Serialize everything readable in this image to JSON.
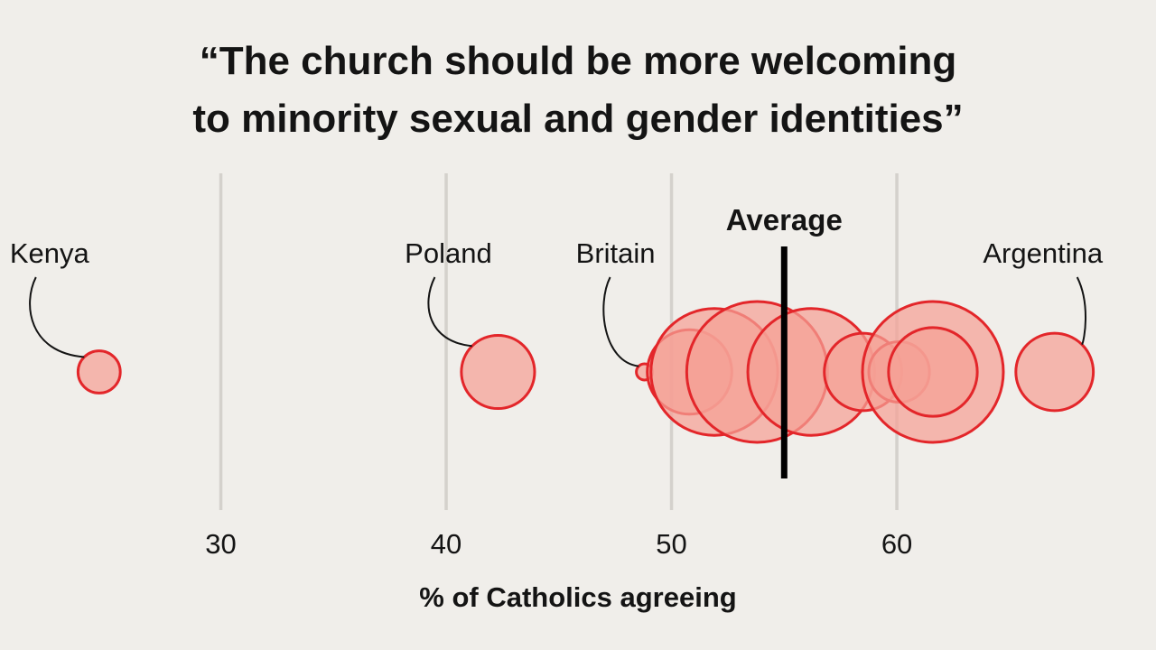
{
  "chart_data": {
    "type": "scatter",
    "title": "“The church should be more welcoming to minority sexual and gender identities”",
    "title_lines": [
      "“The church should be more welcoming",
      "to minority sexual and gender identities”"
    ],
    "xlabel": "% of Catholics agreeing",
    "ylabel": "",
    "xlim": [
      20.2,
      71.5
    ],
    "x_ticks": [
      30,
      40,
      50,
      60
    ],
    "grid": true,
    "average": {
      "label": "Average",
      "value": 55
    },
    "colors": {
      "fill": "#f5a196",
      "stroke": "#e3262a",
      "grid": "#d4d1cc",
      "average": "#000000"
    },
    "points": [
      {
        "label": "Kenya",
        "value": 24.6,
        "size": 0.3
      },
      {
        "label": "Poland",
        "value": 42.3,
        "size": 0.52
      },
      {
        "label": "Britain",
        "value": 48.8,
        "size": 0.115
      },
      {
        "label": "",
        "value": 50.8,
        "size": 0.6
      },
      {
        "label": "",
        "value": 51.9,
        "size": 0.9
      },
      {
        "label": "",
        "value": 53.8,
        "size": 1.0
      },
      {
        "label": "",
        "value": 56.2,
        "size": 0.9
      },
      {
        "label": "",
        "value": 58.5,
        "size": 0.55
      },
      {
        "label": "",
        "value": 60.1,
        "size": 0.43
      },
      {
        "label": "",
        "value": 61.6,
        "size": 1.0
      },
      {
        "label": "",
        "value": 61.6,
        "size": 0.63
      },
      {
        "label": "Argentina",
        "value": 67.0,
        "size": 0.55
      }
    ]
  }
}
